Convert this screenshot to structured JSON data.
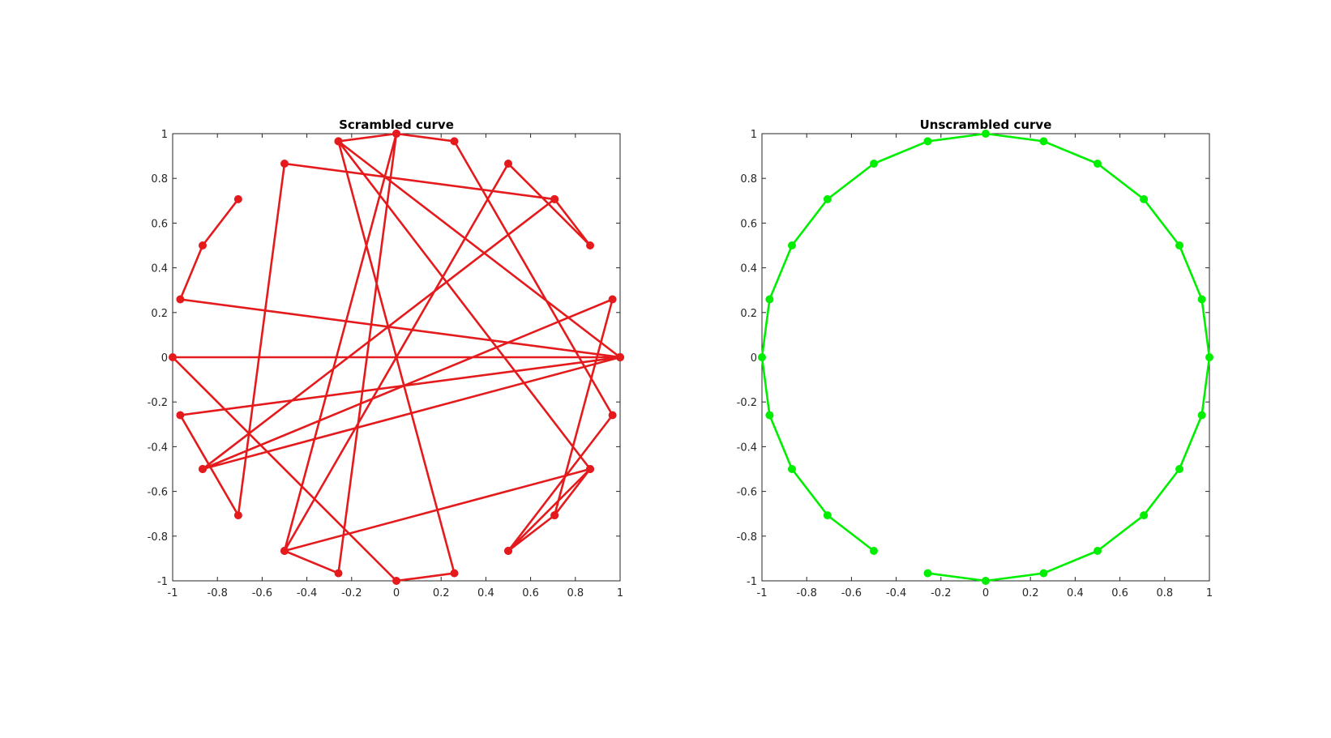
{
  "chart_data": [
    {
      "type": "line",
      "title": "Scrambled curve",
      "xlabel": "",
      "ylabel": "",
      "xlim": [
        -1,
        1
      ],
      "ylim": [
        -1,
        1
      ],
      "xticks": [
        "-1",
        "-0.8",
        "-0.6",
        "-0.4",
        "-0.2",
        "0",
        "0.2",
        "0.4",
        "0.6",
        "0.8",
        "1"
      ],
      "yticks": [
        "1",
        "0.8",
        "0.6",
        "0.4",
        "0.2",
        "0",
        "-0.2",
        "-0.4",
        "-0.6",
        "-0.8",
        "-1"
      ],
      "grid": true,
      "color": "#e41a1c",
      "markers": true,
      "series": [
        {
          "x": [
            -0.707,
            -0.866,
            -0.966,
            1.0,
            -1.0,
            0.0,
            0.259,
            -0.259,
            0.0,
            -0.5,
            0.866,
            -0.259,
            1.0,
            -0.866,
            1.0,
            -0.966,
            -0.707,
            -0.5,
            0.707,
            -0.866,
            0.966,
            0.707,
            0.5,
            0.707,
            0.866,
            0.5,
            0.966,
            0.259,
            0.0,
            -0.259,
            -0.5,
            0.5,
            0.866,
            0.707
          ],
          "y": [
            0.707,
            0.5,
            0.259,
            0.0,
            0.0,
            -1.0,
            -0.966,
            0.966,
            1.0,
            -0.866,
            -0.5,
            0.966,
            0.0,
            -0.5,
            0.0,
            -0.259,
            -0.707,
            0.866,
            0.707,
            -0.5,
            0.259,
            -0.707,
            -0.866,
            -0.707,
            -0.5,
            -0.866,
            -0.259,
            0.966,
            1.0,
            -0.966,
            -0.866,
            0.866,
            0.5,
            0.707
          ]
        }
      ]
    },
    {
      "type": "line",
      "title": "Unscrambled curve",
      "xlabel": "",
      "ylabel": "",
      "xlim": [
        -1,
        1
      ],
      "ylim": [
        -1,
        1
      ],
      "xticks": [
        "-1",
        "-0.8",
        "-0.6",
        "-0.4",
        "-0.2",
        "0",
        "0.2",
        "0.4",
        "0.6",
        "0.8",
        "1"
      ],
      "yticks": [
        "1",
        "0.8",
        "0.6",
        "0.4",
        "0.2",
        "0",
        "-0.2",
        "-0.4",
        "-0.6",
        "-0.8",
        "-1"
      ],
      "grid": true,
      "color": "#00ee00",
      "markers": true,
      "series": [
        {
          "x": [
            -0.259,
            0.0,
            0.259,
            0.5,
            0.707,
            0.866,
            0.966,
            1.0,
            0.966,
            0.866,
            0.707,
            0.5,
            0.259,
            0.0,
            -0.259,
            -0.5,
            -0.707,
            -0.866,
            -0.966,
            -1.0,
            -0.966,
            -0.866,
            -0.707,
            -0.5
          ],
          "y": [
            -0.966,
            -1.0,
            -0.966,
            -0.866,
            -0.707,
            -0.5,
            -0.259,
            0.0,
            0.259,
            0.5,
            0.707,
            0.866,
            0.966,
            1.0,
            0.966,
            0.866,
            0.707,
            0.5,
            0.259,
            0.0,
            -0.259,
            -0.5,
            -0.707,
            -0.866
          ]
        }
      ]
    }
  ]
}
